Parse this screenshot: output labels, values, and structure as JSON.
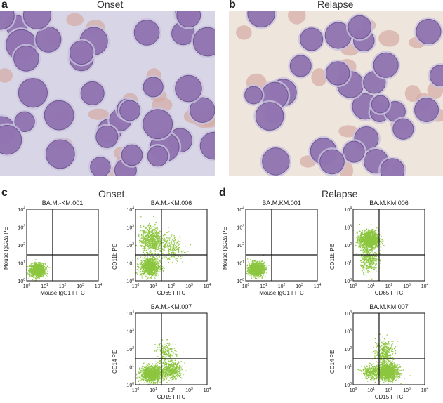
{
  "panels": {
    "a": {
      "letter": "a",
      "title": "Onset"
    },
    "b": {
      "letter": "b",
      "title": "Relapse"
    },
    "c": {
      "letter": "c",
      "title": "Onset"
    },
    "d": {
      "letter": "d",
      "title": "Relapse"
    }
  },
  "colors": {
    "dots": "#8cc63f",
    "micro_bg_onset": "#d8d6e6",
    "micro_bg_relapse": "#eee6dc",
    "cell": "#8a6aab",
    "rbc": "#d4aaa4"
  },
  "plots": {
    "c1": {
      "title": "BA.M.-KM.001",
      "xlabel": "Mouse IgG1 FITC",
      "ylabel": "Mouse IgG2a PE"
    },
    "c2": {
      "title": "BA.M.-KM.006",
      "xlabel": "CD65 FITC",
      "ylabel": "CD11b PE"
    },
    "c3": {
      "title": "BA.M.-KM.007",
      "xlabel": "CD15 FITC",
      "ylabel": "CD14 PE"
    },
    "d1": {
      "title": "BA.M.KM.001",
      "xlabel": "Mouse IgG1 FITC",
      "ylabel": "Mouse IgG2a PE"
    },
    "d2": {
      "title": "BA.M.KM.006",
      "xlabel": "CD65 FITC",
      "ylabel": "CD11b PE"
    },
    "d3": {
      "title": "BA.M.KM.007",
      "xlabel": "CD15 FITC",
      "ylabel": "CD14 PE"
    }
  },
  "chart_data": {
    "type": "scatter",
    "xlim": [
      "10^0",
      "10^4"
    ],
    "ylim": [
      "10^0",
      "10^4"
    ],
    "log_scale": true,
    "tick_labels": [
      "10^0",
      "10^1",
      "10^2",
      "10^3",
      "10^4"
    ],
    "quadrant_gate": [
      1.45,
      1.45
    ],
    "populations": {
      "c1": [
        {
          "cx": 0.6,
          "cy": 0.6,
          "sx": 0.35,
          "sy": 0.3,
          "n": 1200
        }
      ],
      "c2": [
        {
          "cx": 0.8,
          "cy": 0.8,
          "sx": 0.45,
          "sy": 0.45,
          "n": 900
        },
        {
          "cx": 0.9,
          "cy": 2.3,
          "sx": 0.5,
          "sy": 0.6,
          "n": 700
        },
        {
          "cx": 2.0,
          "cy": 1.8,
          "sx": 0.6,
          "sy": 0.6,
          "n": 250
        }
      ],
      "c3": [
        {
          "cx": 0.9,
          "cy": 0.6,
          "sx": 0.5,
          "sy": 0.35,
          "n": 1300
        },
        {
          "cx": 2.0,
          "cy": 0.8,
          "sx": 0.5,
          "sy": 0.4,
          "n": 500
        },
        {
          "cx": 1.7,
          "cy": 1.8,
          "sx": 0.45,
          "sy": 0.5,
          "n": 200
        }
      ],
      "d1": [
        {
          "cx": 0.6,
          "cy": 0.65,
          "sx": 0.35,
          "sy": 0.3,
          "n": 1200
        }
      ],
      "d2": [
        {
          "cx": 0.9,
          "cy": 2.3,
          "sx": 0.45,
          "sy": 0.4,
          "n": 1400
        },
        {
          "cx": 0.9,
          "cy": 1.2,
          "sx": 0.4,
          "sy": 0.6,
          "n": 400
        }
      ],
      "d3": [
        {
          "cx": 1.9,
          "cy": 0.7,
          "sx": 0.5,
          "sy": 0.35,
          "n": 1400
        },
        {
          "cx": 1.8,
          "cy": 1.8,
          "sx": 0.45,
          "sy": 0.6,
          "n": 350
        },
        {
          "cx": 1.0,
          "cy": 0.7,
          "sx": 0.4,
          "sy": 0.3,
          "n": 300
        }
      ]
    }
  }
}
